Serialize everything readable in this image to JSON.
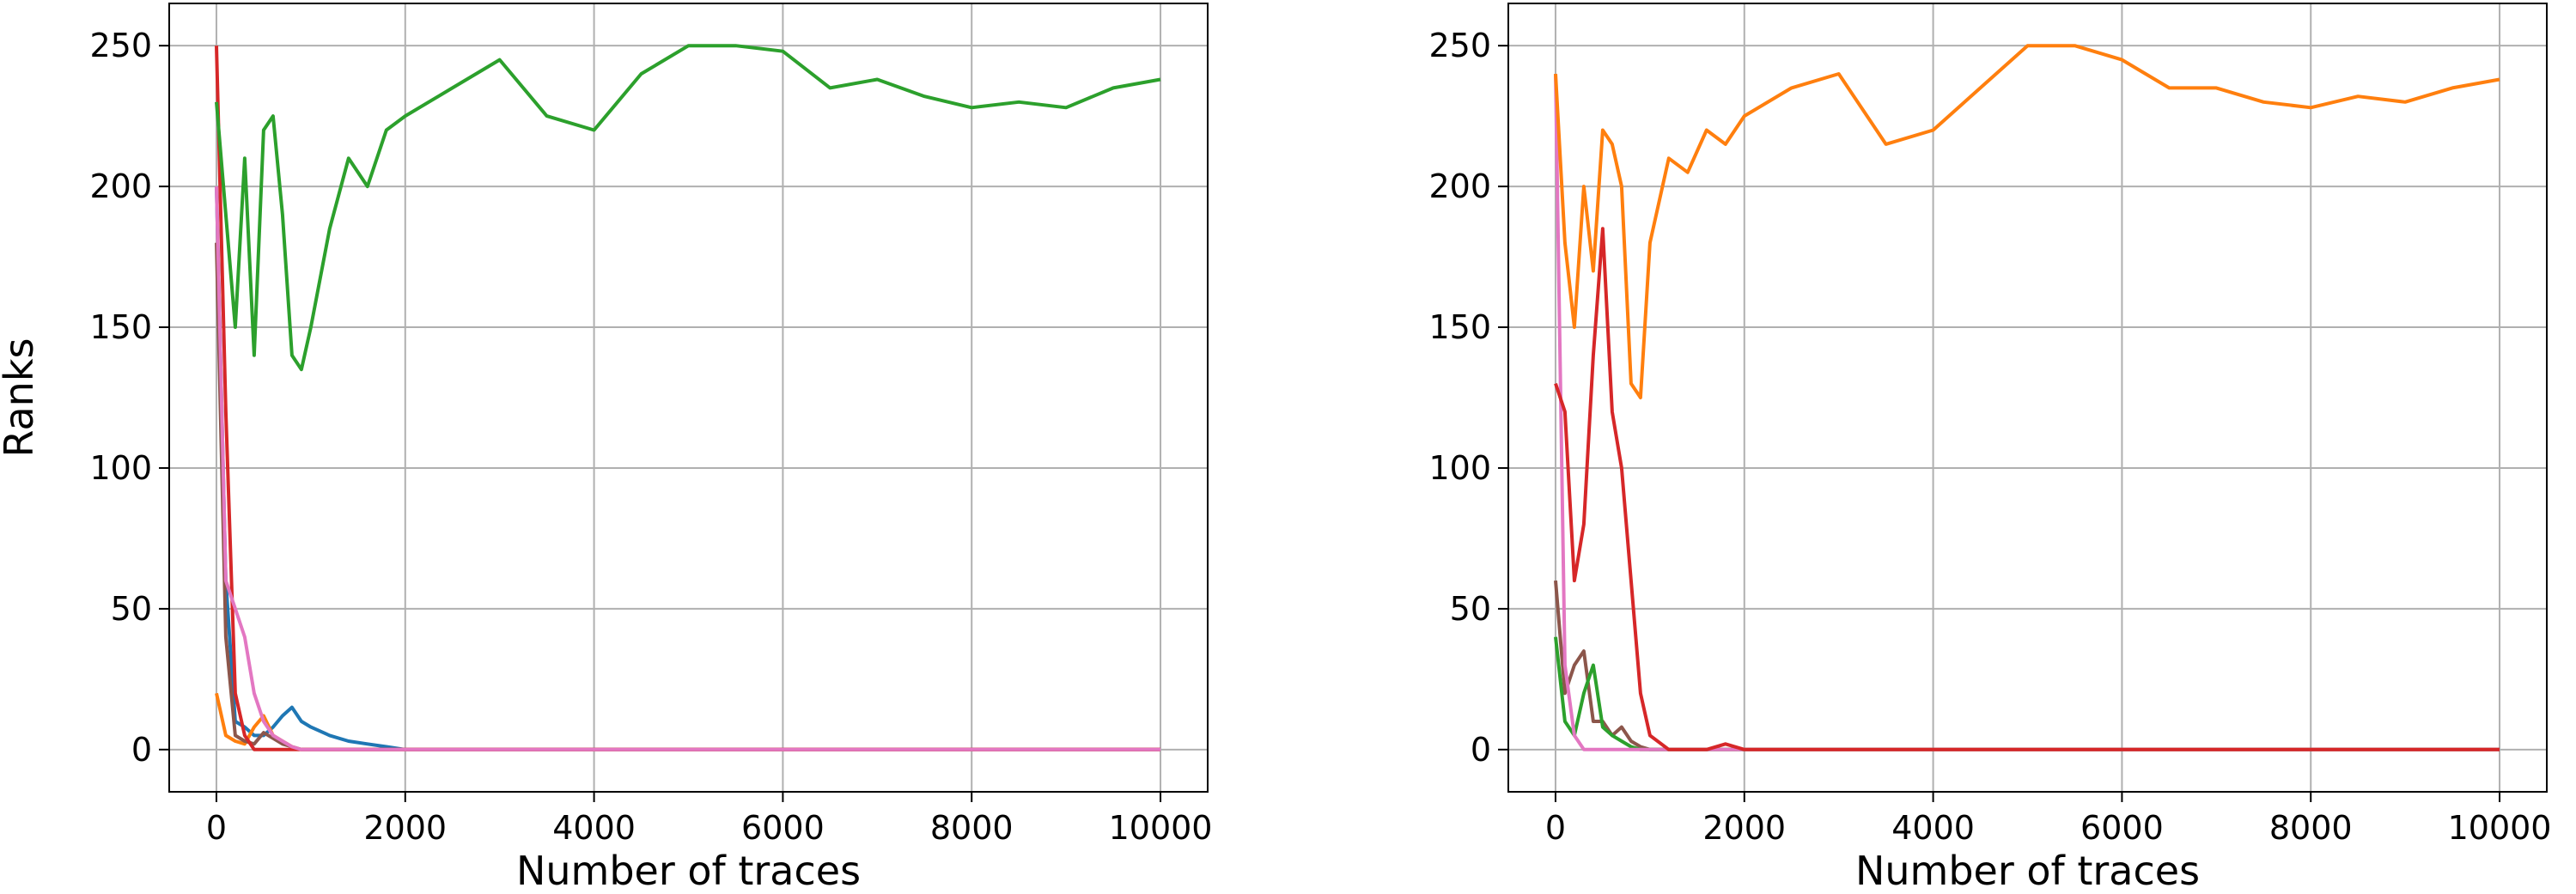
{
  "chart_data": [
    {
      "type": "line",
      "xlabel": "Number of traces",
      "ylabel": "Ranks",
      "x": [
        0,
        100,
        200,
        300,
        400,
        500,
        600,
        700,
        800,
        900,
        1000,
        1200,
        1400,
        1600,
        1800,
        2000,
        2500,
        3000,
        3500,
        4000,
        4500,
        5000,
        5500,
        6000,
        6500,
        7000,
        7500,
        8000,
        8500,
        9000,
        9500,
        10000
      ],
      "xlim": [
        -500,
        10500
      ],
      "xticks": [
        0,
        2000,
        4000,
        6000,
        8000,
        10000
      ],
      "ylim": [
        -15,
        265
      ],
      "yticks": [
        0,
        50,
        100,
        150,
        200,
        250
      ],
      "grid": true,
      "series": [
        {
          "color": "#1f77b4",
          "values": [
            200,
            60,
            10,
            8,
            5,
            5,
            8,
            12,
            15,
            10,
            8,
            5,
            3,
            2,
            1,
            0,
            0,
            0,
            0,
            0,
            0,
            0,
            0,
            0,
            0,
            0,
            0,
            0,
            0,
            0,
            0,
            0
          ]
        },
        {
          "color": "#ff7f0e",
          "values": [
            20,
            5,
            3,
            2,
            8,
            12,
            5,
            3,
            1,
            0,
            0,
            0,
            0,
            0,
            0,
            0,
            0,
            0,
            0,
            0,
            0,
            0,
            0,
            0,
            0,
            0,
            0,
            0,
            0,
            0,
            0,
            0
          ]
        },
        {
          "color": "#8c564b",
          "values": [
            180,
            40,
            5,
            3,
            2,
            6,
            4,
            2,
            1,
            0,
            0,
            0,
            0,
            0,
            0,
            0,
            0,
            0,
            0,
            0,
            0,
            0,
            0,
            0,
            0,
            0,
            0,
            0,
            0,
            0,
            0,
            0
          ]
        },
        {
          "color": "#d62728",
          "values": [
            250,
            120,
            20,
            5,
            0,
            0,
            0,
            0,
            0,
            0,
            0,
            0,
            0,
            0,
            0,
            0,
            0,
            0,
            0,
            0,
            0,
            0,
            0,
            0,
            0,
            0,
            0,
            0,
            0,
            0,
            0,
            0
          ]
        },
        {
          "color": "#e377c2",
          "values": [
            200,
            60,
            50,
            40,
            20,
            10,
            5,
            3,
            1,
            0,
            0,
            0,
            0,
            0,
            0,
            0,
            0,
            0,
            0,
            0,
            0,
            0,
            0,
            0,
            0,
            0,
            0,
            0,
            0,
            0,
            0,
            0
          ]
        },
        {
          "color": "#2ca02c",
          "values": [
            230,
            190,
            150,
            210,
            140,
            220,
            225,
            190,
            140,
            135,
            150,
            185,
            210,
            200,
            220,
            225,
            235,
            245,
            225,
            220,
            240,
            250,
            250,
            248,
            235,
            238,
            232,
            228,
            230,
            228,
            235,
            238
          ]
        }
      ]
    },
    {
      "type": "line",
      "xlabel": "Number of traces",
      "x": [
        0,
        100,
        200,
        300,
        400,
        500,
        600,
        700,
        800,
        900,
        1000,
        1200,
        1400,
        1600,
        1800,
        2000,
        2500,
        3000,
        3500,
        4000,
        4500,
        5000,
        5500,
        6000,
        6500,
        7000,
        7500,
        8000,
        8500,
        9000,
        9500,
        10000
      ],
      "xlim": [
        -500,
        10500
      ],
      "xticks": [
        0,
        2000,
        4000,
        6000,
        8000,
        10000
      ],
      "ylim": [
        -15,
        265
      ],
      "yticks": [
        0,
        50,
        100,
        150,
        200,
        250
      ],
      "grid": true,
      "series": [
        {
          "color": "#8c564b",
          "values": [
            60,
            20,
            30,
            35,
            10,
            10,
            5,
            8,
            3,
            1,
            0,
            0,
            0,
            0,
            0,
            0,
            0,
            0,
            0,
            0,
            0,
            0,
            0,
            0,
            0,
            0,
            0,
            0,
            0,
            0,
            0,
            0
          ]
        },
        {
          "color": "#2ca02c",
          "values": [
            40,
            10,
            5,
            20,
            30,
            8,
            5,
            3,
            1,
            0,
            0,
            0,
            0,
            0,
            0,
            0,
            0,
            0,
            0,
            0,
            0,
            0,
            0,
            0,
            0,
            0,
            0,
            0,
            0,
            0,
            0,
            0
          ]
        },
        {
          "color": "#e377c2",
          "values": [
            240,
            30,
            5,
            0,
            0,
            0,
            0,
            0,
            0,
            0,
            0,
            0,
            0,
            0,
            0,
            0,
            0,
            0,
            0,
            0,
            0,
            0,
            0,
            0,
            0,
            0,
            0,
            0,
            0,
            0,
            0,
            0
          ]
        },
        {
          "color": "#d62728",
          "values": [
            130,
            120,
            60,
            80,
            140,
            185,
            120,
            100,
            60,
            20,
            5,
            0,
            0,
            0,
            2,
            0,
            0,
            0,
            0,
            0,
            0,
            0,
            0,
            0,
            0,
            0,
            0,
            0,
            0,
            0,
            0,
            0
          ]
        },
        {
          "color": "#ff7f0e",
          "values": [
            240,
            180,
            150,
            200,
            170,
            220,
            215,
            200,
            130,
            125,
            180,
            210,
            205,
            220,
            215,
            225,
            235,
            240,
            215,
            220,
            235,
            250,
            250,
            245,
            235,
            235,
            230,
            228,
            232,
            230,
            235,
            238
          ]
        }
      ]
    }
  ]
}
